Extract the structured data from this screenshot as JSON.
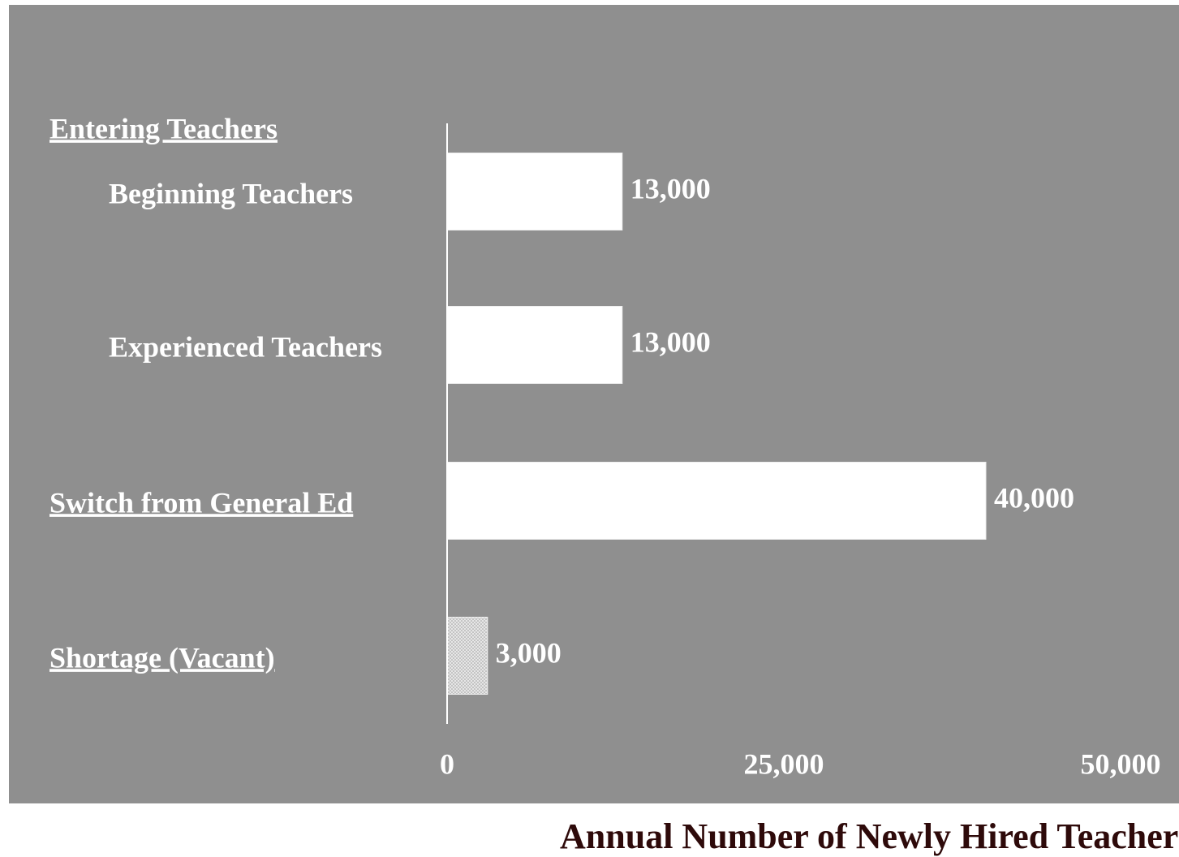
{
  "chart_data": {
    "type": "hbar",
    "group_label": "Entering Teachers",
    "categories": [
      "Beginning Teachers",
      "Experienced Teachers",
      "Switch from General Ed",
      "Shortage (Vacant)"
    ],
    "values": [
      13000,
      13000,
      40000,
      3000
    ],
    "value_labels": [
      "13,000",
      "13,000",
      "40,000",
      "3,000"
    ],
    "colors": [
      "#ffffff",
      "#ffffff",
      "#ffffff",
      "#d9d9d9"
    ],
    "xlim": [
      0,
      50000
    ],
    "xticks": [
      0,
      {
        "value": 25000,
        "label": "25,000"
      },
      {
        "value": 50000,
        "label": "50,000"
      }
    ],
    "x_label": "Annual Number of Newly Hired Teachers",
    "grid": false
  }
}
